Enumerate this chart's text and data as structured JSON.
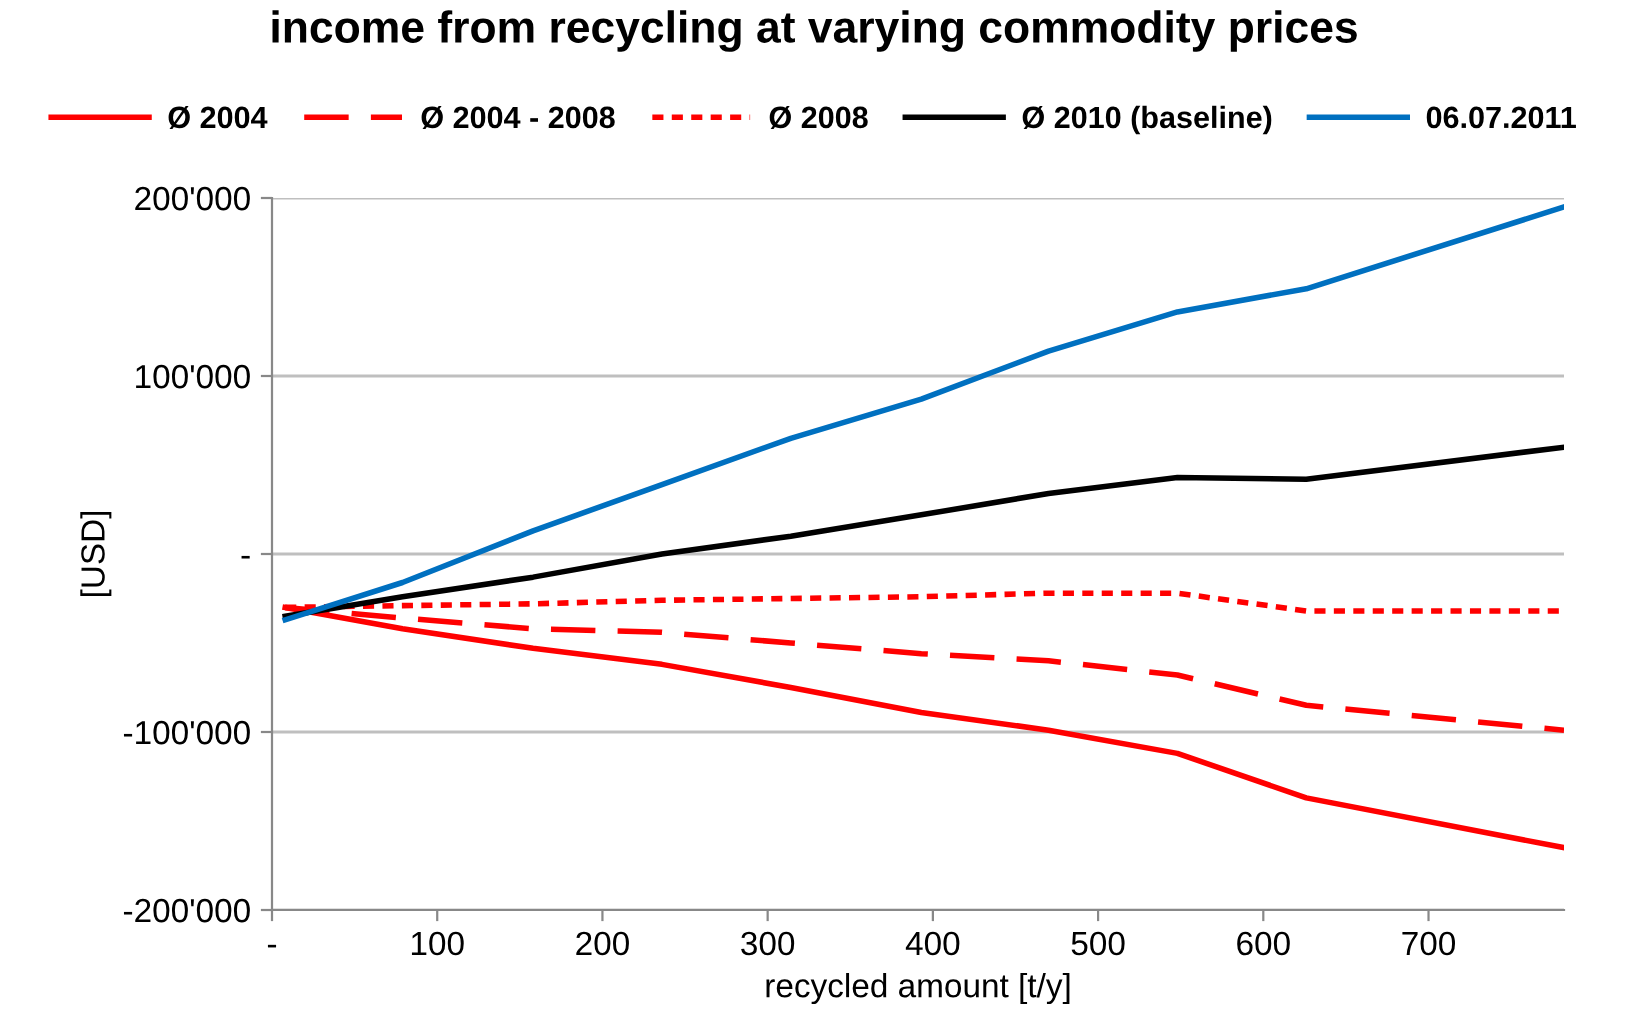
{
  "chart_data": {
    "type": "line",
    "title": "income from recycling at varying commodity prices",
    "xlabel": "recycled amount [t/y]",
    "ylabel": "[USD]",
    "x": [
      8,
      79,
      158,
      236,
      314,
      393,
      470,
      548,
      626,
      782
    ],
    "series": [
      {
        "name": "Ø 2004",
        "color": "#ff0000",
        "line_style": "solid",
        "values": [
          -30000,
          -42000,
          -53000,
          -62000,
          -75000,
          -89000,
          -99000,
          -112000,
          -137000,
          -165000
        ]
      },
      {
        "name": "Ø 2004 - 2008",
        "color": "#ff0000",
        "line_style": "dashed",
        "values": [
          -30000,
          -36000,
          -42000,
          -44000,
          -50000,
          -56000,
          -60000,
          -68000,
          -85000,
          -99000
        ]
      },
      {
        "name": "Ø 2008",
        "color": "#ff0000",
        "line_style": "dotted",
        "values": [
          -30000,
          -29000,
          -28000,
          -26000,
          -25000,
          -24000,
          -22000,
          -22000,
          -32000,
          -32000
        ]
      },
      {
        "name": "Ø 2010 (baseline)",
        "color": "#000000",
        "line_style": "solid",
        "values": [
          -35000,
          -24000,
          -13000,
          0,
          10000,
          22000,
          34000,
          43000,
          42000,
          60000
        ]
      },
      {
        "name": "06.07.2011",
        "color": "#0070c0",
        "line_style": "solid",
        "values": [
          -37000,
          -16000,
          13000,
          39000,
          65000,
          87000,
          114000,
          136000,
          149000,
          195000
        ]
      }
    ],
    "xlim": [
      0,
      782
    ],
    "xticks": [
      {
        "value": 0,
        "label": "-"
      },
      100,
      200,
      300,
      400,
      500,
      600,
      700
    ],
    "ylim": [
      -200000,
      200000
    ],
    "yticks": [
      {
        "value": -200000,
        "label": "-200'000"
      },
      {
        "value": -100000,
        "label": "-100'000"
      },
      {
        "value": 0,
        "label": "-"
      },
      {
        "value": 100000,
        "label": "100'000"
      },
      {
        "value": 200000,
        "label": "200'000"
      }
    ],
    "grid": "y",
    "legend": "top",
    "marker": "none"
  }
}
